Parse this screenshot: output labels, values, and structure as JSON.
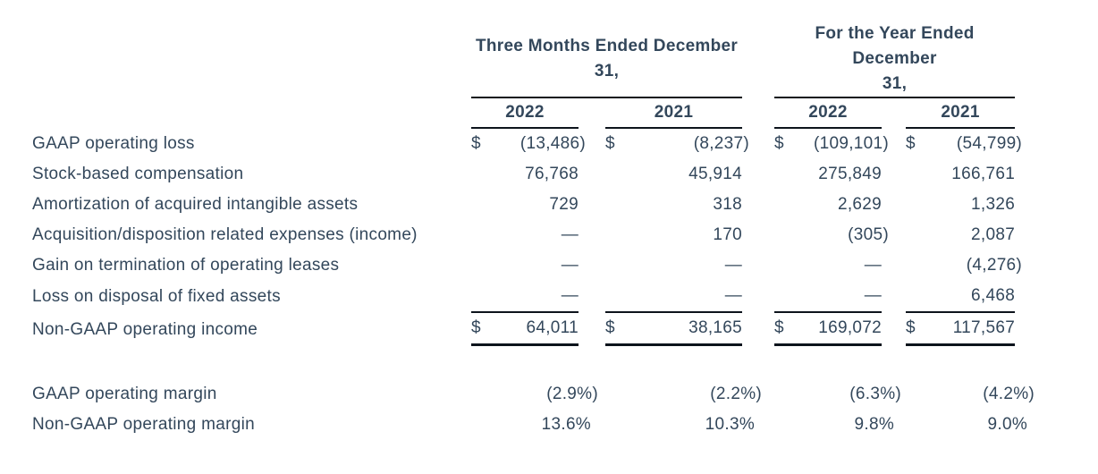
{
  "labels": {
    "currency": "$"
  },
  "colors": {
    "text": "#33475b",
    "rule": "#0d141c"
  },
  "table": {
    "groups": [
      {
        "title": "Three Months Ended December 31,",
        "title_lines": [
          "Three Months Ended December",
          "31,"
        ],
        "years": [
          "2022",
          "2021"
        ]
      },
      {
        "title": "For the Year Ended December 31,",
        "title_lines": [
          "For the Year Ended December",
          "31,"
        ],
        "years": [
          "2022",
          "2021"
        ]
      }
    ],
    "rows": [
      {
        "label": "GAAP operating loss",
        "currency": "$",
        "values": [
          "(13,486)",
          "(8,237)",
          "(109,101)",
          "(54,799)"
        ]
      },
      {
        "label": "Stock-based compensation",
        "values": [
          "76,768",
          "45,914",
          "275,849",
          "166,761"
        ]
      },
      {
        "label": "Amortization of acquired intangible assets",
        "values": [
          "729",
          "318",
          "2,629",
          "1,326"
        ]
      },
      {
        "label": "Acquisition/disposition related expenses (income)",
        "values": [
          "—",
          "170",
          "(305)",
          "2,087"
        ]
      },
      {
        "label": "Gain on termination of operating leases",
        "values": [
          "—",
          "—",
          "—",
          "(4,276)"
        ]
      },
      {
        "label": "Loss on disposal of fixed assets",
        "values": [
          "—",
          "—",
          "—",
          "6,468"
        ]
      },
      {
        "label": "Non-GAAP operating income",
        "currency": "$",
        "values": [
          "64,011",
          "38,165",
          "169,072",
          "117,567"
        ]
      }
    ],
    "margin_rows": [
      {
        "label": "GAAP operating margin",
        "values": [
          "(2.9%)",
          "(2.2%)",
          "(6.3%)",
          "(4.2%)"
        ]
      },
      {
        "label": "Non-GAAP operating margin",
        "values": [
          "13.6%",
          "10.3%",
          "9.8%",
          "9.0%"
        ]
      }
    ]
  }
}
